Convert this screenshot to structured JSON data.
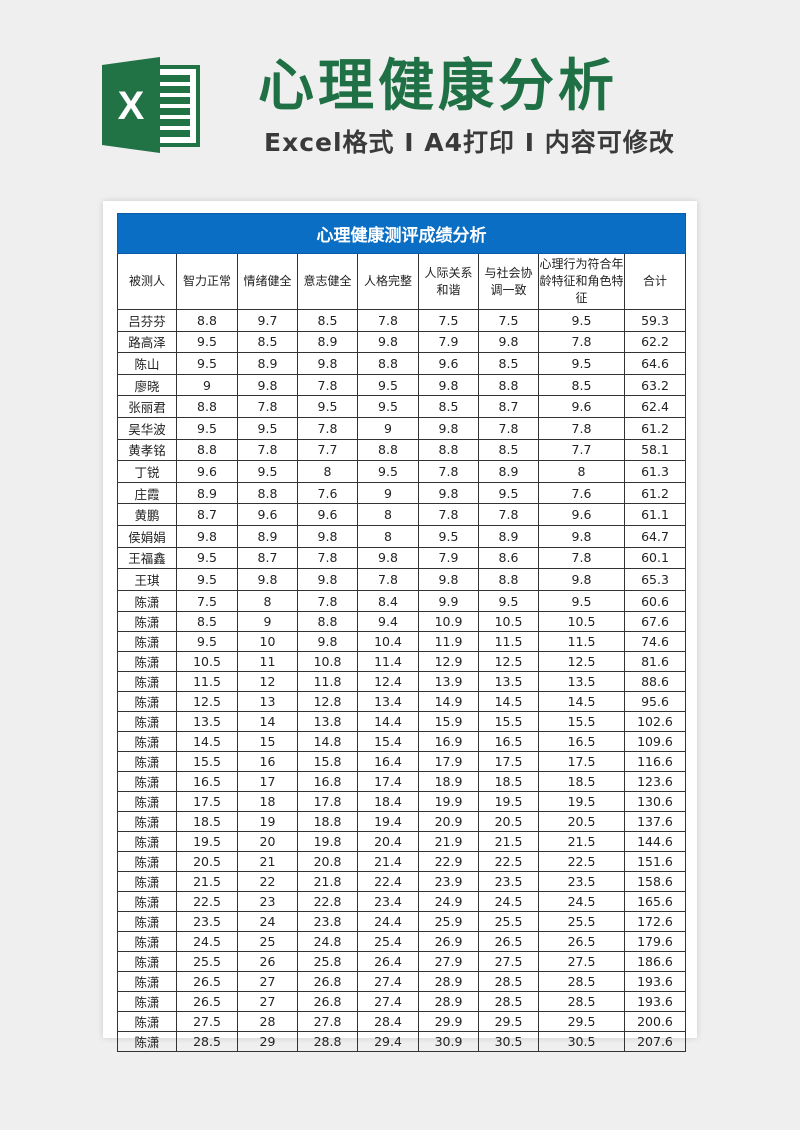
{
  "header": {
    "title": "心理健康分析",
    "subtitle": "Excel格式 I A4打印 I 内容可修改",
    "logo_letter": "X",
    "logo_color": "#217346",
    "title_color": "#1f7044"
  },
  "table": {
    "caption": "心理健康测评成绩分析",
    "caption_bg": "#0a6ec4",
    "columns": [
      "被测人",
      "智力正常",
      "情绪健全",
      "意志健全",
      "人格完整",
      "人际关系和谐",
      "与社会协调一致",
      "心理行为符合年龄特征和角色特征",
      "合计"
    ],
    "rows": [
      [
        "吕芬芬",
        "8.8",
        "9.7",
        "8.5",
        "7.8",
        "7.5",
        "7.5",
        "9.5",
        "59.3"
      ],
      [
        "路高泽",
        "9.5",
        "8.5",
        "8.9",
        "9.8",
        "7.9",
        "9.8",
        "7.8",
        "62.2"
      ],
      [
        "陈山",
        "9.5",
        "8.9",
        "9.8",
        "8.8",
        "9.6",
        "8.5",
        "9.5",
        "64.6"
      ],
      [
        "廖晓",
        "9",
        "9.8",
        "7.8",
        "9.5",
        "9.8",
        "8.8",
        "8.5",
        "63.2"
      ],
      [
        "张丽君",
        "8.8",
        "7.8",
        "9.5",
        "9.5",
        "8.5",
        "8.7",
        "9.6",
        "62.4"
      ],
      [
        "吴华波",
        "9.5",
        "9.5",
        "7.8",
        "9",
        "9.8",
        "7.8",
        "7.8",
        "61.2"
      ],
      [
        "黄孝铭",
        "8.8",
        "7.8",
        "7.7",
        "8.8",
        "8.8",
        "8.5",
        "7.7",
        "58.1"
      ],
      [
        "丁锐",
        "9.6",
        "9.5",
        "8",
        "9.5",
        "7.8",
        "8.9",
        "8",
        "61.3"
      ],
      [
        "庄霞",
        "8.9",
        "8.8",
        "7.6",
        "9",
        "9.8",
        "9.5",
        "7.6",
        "61.2"
      ],
      [
        "黄鹏",
        "8.7",
        "9.6",
        "9.6",
        "8",
        "7.8",
        "7.8",
        "9.6",
        "61.1"
      ],
      [
        "侯娟娟",
        "9.8",
        "8.9",
        "9.8",
        "8",
        "9.5",
        "8.9",
        "9.8",
        "64.7"
      ],
      [
        "王福鑫",
        "9.5",
        "8.7",
        "7.8",
        "9.8",
        "7.9",
        "8.6",
        "7.8",
        "60.1"
      ],
      [
        "王琪",
        "9.5",
        "9.8",
        "9.8",
        "7.8",
        "9.8",
        "8.8",
        "9.8",
        "65.3"
      ],
      [
        "陈潇",
        "7.5",
        "8",
        "7.8",
        "8.4",
        "9.9",
        "9.5",
        "9.5",
        "60.6"
      ],
      [
        "陈潇",
        "8.5",
        "9",
        "8.8",
        "9.4",
        "10.9",
        "10.5",
        "10.5",
        "67.6"
      ],
      [
        "陈潇",
        "9.5",
        "10",
        "9.8",
        "10.4",
        "11.9",
        "11.5",
        "11.5",
        "74.6"
      ],
      [
        "陈潇",
        "10.5",
        "11",
        "10.8",
        "11.4",
        "12.9",
        "12.5",
        "12.5",
        "81.6"
      ],
      [
        "陈潇",
        "11.5",
        "12",
        "11.8",
        "12.4",
        "13.9",
        "13.5",
        "13.5",
        "88.6"
      ],
      [
        "陈潇",
        "12.5",
        "13",
        "12.8",
        "13.4",
        "14.9",
        "14.5",
        "14.5",
        "95.6"
      ],
      [
        "陈潇",
        "13.5",
        "14",
        "13.8",
        "14.4",
        "15.9",
        "15.5",
        "15.5",
        "102.6"
      ],
      [
        "陈潇",
        "14.5",
        "15",
        "14.8",
        "15.4",
        "16.9",
        "16.5",
        "16.5",
        "109.6"
      ],
      [
        "陈潇",
        "15.5",
        "16",
        "15.8",
        "16.4",
        "17.9",
        "17.5",
        "17.5",
        "116.6"
      ],
      [
        "陈潇",
        "16.5",
        "17",
        "16.8",
        "17.4",
        "18.9",
        "18.5",
        "18.5",
        "123.6"
      ],
      [
        "陈潇",
        "17.5",
        "18",
        "17.8",
        "18.4",
        "19.9",
        "19.5",
        "19.5",
        "130.6"
      ],
      [
        "陈潇",
        "18.5",
        "19",
        "18.8",
        "19.4",
        "20.9",
        "20.5",
        "20.5",
        "137.6"
      ],
      [
        "陈潇",
        "19.5",
        "20",
        "19.8",
        "20.4",
        "21.9",
        "21.5",
        "21.5",
        "144.6"
      ],
      [
        "陈潇",
        "20.5",
        "21",
        "20.8",
        "21.4",
        "22.9",
        "22.5",
        "22.5",
        "151.6"
      ],
      [
        "陈潇",
        "21.5",
        "22",
        "21.8",
        "22.4",
        "23.9",
        "23.5",
        "23.5",
        "158.6"
      ],
      [
        "陈潇",
        "22.5",
        "23",
        "22.8",
        "23.4",
        "24.9",
        "24.5",
        "24.5",
        "165.6"
      ],
      [
        "陈潇",
        "23.5",
        "24",
        "23.8",
        "24.4",
        "25.9",
        "25.5",
        "25.5",
        "172.6"
      ],
      [
        "陈潇",
        "24.5",
        "25",
        "24.8",
        "25.4",
        "26.9",
        "26.5",
        "26.5",
        "179.6"
      ],
      [
        "陈潇",
        "25.5",
        "26",
        "25.8",
        "26.4",
        "27.9",
        "27.5",
        "27.5",
        "186.6"
      ],
      [
        "陈潇",
        "26.5",
        "27",
        "26.8",
        "27.4",
        "28.9",
        "28.5",
        "28.5",
        "193.6"
      ],
      [
        "陈潇",
        "26.5",
        "27",
        "26.8",
        "27.4",
        "28.9",
        "28.5",
        "28.5",
        "193.6"
      ],
      [
        "陈潇",
        "27.5",
        "28",
        "27.8",
        "28.4",
        "29.9",
        "29.5",
        "29.5",
        "200.6"
      ],
      [
        "陈潇",
        "28.5",
        "29",
        "28.8",
        "29.4",
        "30.9",
        "30.5",
        "30.5",
        "207.6"
      ]
    ]
  }
}
